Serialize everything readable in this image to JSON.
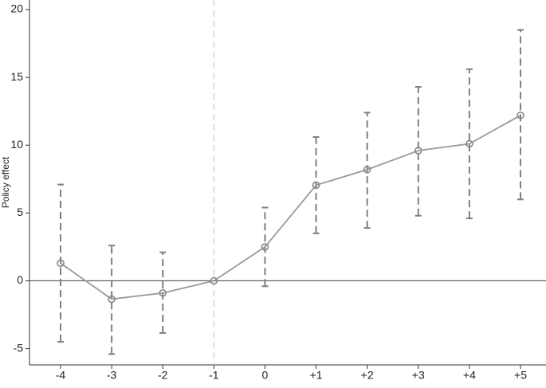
{
  "chart_data": {
    "type": "errorbar_line",
    "y_label": "Policy effect",
    "categories": [
      "-4",
      "-3",
      "-2",
      "-1",
      "0",
      "+1",
      "+2",
      "+3",
      "+4",
      "+5"
    ],
    "series": [
      {
        "values": [
          1.3,
          -1.35,
          -0.9,
          0,
          2.5,
          7.05,
          8.2,
          9.6,
          10.1,
          12.2
        ],
        "lower": [
          -4.5,
          -5.4,
          -3.85,
          null,
          -0.4,
          3.5,
          3.9,
          4.8,
          4.6,
          6.0
        ],
        "upper": [
          7.1,
          2.6,
          2.1,
          null,
          5.4,
          10.6,
          12.4,
          14.3,
          15.6,
          18.5
        ],
        "color": "#999999",
        "ci_color": "#7f7f7f"
      }
    ],
    "ylim": [
      -6.2,
      20
    ],
    "yticks": [
      -5,
      0,
      5,
      10,
      15,
      20
    ],
    "hline": 0,
    "vline_category": "-1",
    "vline_color": "#cccccc"
  }
}
